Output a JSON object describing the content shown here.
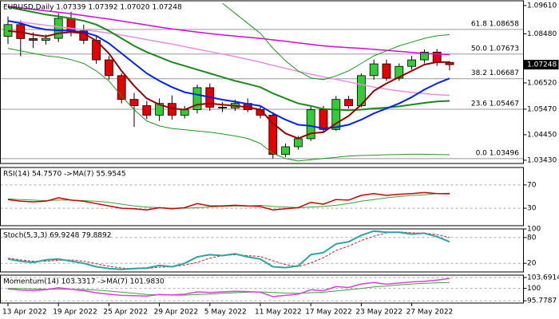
{
  "chart_data": [
    {
      "type": "candlestick",
      "title": "EURUSD,Daily  1.07339 1.07392 1.07020 1.07248",
      "categories": [
        "13 Apr 2022",
        null,
        null,
        null,
        "19 Apr 2022",
        null,
        null,
        null,
        "25 Apr 2022",
        null,
        null,
        null,
        "29 Apr 2022",
        null,
        null,
        null,
        "5 May 2022",
        null,
        null,
        null,
        "11 May 2022",
        null,
        null,
        null,
        "17 May 2022",
        null,
        null,
        null,
        "23 May 2022",
        null,
        null,
        null,
        "27 May 2022",
        null,
        null,
        null
      ],
      "open": [
        1.0838,
        1.0885,
        1.0829,
        1.0822,
        1.083,
        1.091,
        1.086,
        1.0822,
        1.0744,
        1.0681,
        1.0586,
        1.0561,
        1.0523,
        1.057,
        1.0523,
        1.0545,
        1.0633,
        1.0555,
        1.0552,
        1.057,
        1.0545,
        1.0523,
        1.0366,
        1.0397,
        1.0429,
        1.0545,
        1.0466,
        1.0586,
        1.0561,
        1.0681,
        1.0728,
        1.0671,
        1.0718,
        1.0744,
        1.0775,
        1.07339
      ],
      "high": [
        1.0917,
        1.0901,
        1.0854,
        1.0845,
        1.093,
        1.0936,
        1.0885,
        1.0838,
        1.0759,
        1.069,
        1.0612,
        1.058,
        1.059,
        1.0602,
        1.056,
        1.0645,
        1.065,
        1.0575,
        1.0585,
        1.059,
        1.056,
        1.0535,
        1.041,
        1.044,
        1.056,
        1.056,
        1.06,
        1.06,
        1.069,
        1.0745,
        1.0745,
        1.073,
        1.076,
        1.0786,
        1.0787,
        1.07392
      ],
      "low": [
        1.0807,
        1.0759,
        1.0791,
        1.0805,
        1.0815,
        1.0838,
        1.0807,
        1.0728,
        1.0665,
        1.057,
        1.0476,
        1.0507,
        1.05,
        1.0505,
        1.051,
        1.053,
        1.054,
        1.0535,
        1.054,
        1.0535,
        1.051,
        1.03496,
        1.0355,
        1.0385,
        1.042,
        1.0455,
        1.046,
        1.055,
        1.0555,
        1.0665,
        1.066,
        1.066,
        1.0705,
        1.073,
        1.072,
        1.0702
      ],
      "close": [
        1.0885,
        1.0829,
        1.0822,
        1.083,
        1.091,
        1.086,
        1.0822,
        1.0744,
        1.0681,
        1.0586,
        1.0561,
        1.0523,
        1.057,
        1.0523,
        1.0545,
        1.0633,
        1.0555,
        1.0552,
        1.057,
        1.0545,
        1.0523,
        1.0366,
        1.0397,
        1.0429,
        1.0545,
        1.0466,
        1.0586,
        1.0561,
        1.0681,
        1.0728,
        1.0671,
        1.0718,
        1.0744,
        1.0775,
        1.07339,
        1.07248
      ],
      "up_color": "#32cd32",
      "down_color": "#e60000",
      "last_label": "1.07248",
      "ylim": [
        1.033,
        1.098
      ],
      "yticks": [
        {
          "value": 1.0961,
          "label": "1.09610"
        },
        {
          "value": 1.0848,
          "label": "1.08480"
        },
        {
          "value": 1.0652,
          "label": "1.06520"
        },
        {
          "value": 1.0547,
          "label": "1.05470"
        },
        {
          "value": 1.0445,
          "label": "1.04450"
        },
        {
          "value": 1.0343,
          "label": "1.03430"
        }
      ],
      "levels": [
        {
          "value": 1.08658,
          "label": "61.8 1.08658"
        },
        {
          "value": 1.07673,
          "label": "50.0 1.07673"
        },
        {
          "value": 1.06687,
          "label": "38.2 1.06687"
        },
        {
          "value": 1.05467,
          "label": "23.6 1.05467"
        },
        {
          "value": 1.03496,
          "label": "0.0 1.03496"
        }
      ],
      "series": [
        {
          "color": "#e890e0",
          "width": 1.5,
          "values": [
            1.09,
            1.0895,
            1.0889,
            1.0882,
            1.0876,
            1.087,
            1.0864,
            1.0858,
            1.0851,
            1.0843,
            1.0834,
            1.0825,
            1.0816,
            1.0807,
            1.0797,
            1.0787,
            1.0777,
            1.0767,
            1.0757,
            1.0746,
            1.0735,
            1.0722,
            1.071,
            1.0698,
            1.0687,
            1.0676,
            1.0666,
            1.0656,
            1.0645,
            1.0635,
            1.0627,
            1.062,
            1.0614,
            1.0609,
            1.0605,
            1.0602
          ]
        },
        {
          "color": "#dd00dd",
          "width": 1.5,
          "values": [
            1.0958,
            1.0952,
            1.0946,
            1.094,
            1.0934,
            1.0928,
            1.0921,
            1.0914,
            1.0907,
            1.0899,
            1.0891,
            1.0883,
            1.0875,
            1.0868,
            1.0861,
            1.0855,
            1.0849,
            1.0844,
            1.0839,
            1.0834,
            1.083,
            1.0824,
            1.0818,
            1.0812,
            1.0806,
            1.08,
            1.0796,
            1.0793,
            1.079,
            1.0786,
            1.0782,
            1.0778,
            1.0774,
            1.077,
            1.0767,
            1.0765
          ]
        },
        {
          "color": "#1e9a1e",
          "width": 1,
          "values": [
            null,
            null,
            null,
            null,
            null,
            null,
            null,
            null,
            null,
            null,
            null,
            null,
            null,
            null,
            null,
            null,
            null,
            1.097,
            1.093,
            1.089,
            1.085,
            1.079,
            1.074,
            1.07,
            1.0672,
            1.0665,
            1.068,
            1.07,
            1.073,
            1.076,
            1.078,
            1.08,
            1.0815,
            1.083,
            1.084,
            1.0845
          ]
        },
        {
          "color": "#1e9a1e",
          "width": 1,
          "values": [
            1.079,
            1.078,
            1.077,
            1.076,
            1.0755,
            1.0745,
            1.073,
            1.07,
            1.066,
            1.06,
            1.0545,
            1.05,
            1.048,
            1.047,
            1.0465,
            1.046,
            1.0455,
            1.0448,
            1.044,
            1.043,
            1.041,
            1.037,
            1.035,
            1.034,
            1.0345,
            1.035,
            1.0355,
            1.036,
            1.0362,
            1.0363,
            1.0365,
            1.0366,
            1.0367,
            1.0367,
            1.0366,
            1.0365
          ]
        },
        {
          "color": "#1a8a1a",
          "width": 2,
          "values": [
            1.0955,
            1.0945,
            1.0935,
            1.0925,
            1.0918,
            1.091,
            1.09,
            1.0885,
            1.086,
            1.083,
            1.08,
            1.0775,
            1.0755,
            1.0735,
            1.072,
            1.0705,
            1.069,
            1.0675,
            1.066,
            1.0648,
            1.0635,
            1.061,
            1.059,
            1.057,
            1.056,
            1.0548,
            1.0545,
            1.0543,
            1.0545,
            1.055,
            1.0553,
            1.0558,
            1.0565,
            1.0572,
            1.0578,
            1.058
          ]
        },
        {
          "color": "#0022ee",
          "width": 2,
          "values": [
            1.09,
            1.089,
            1.0875,
            1.0865,
            1.0862,
            1.086,
            1.0855,
            1.084,
            1.081,
            1.077,
            1.073,
            1.069,
            1.066,
            1.0635,
            1.0615,
            1.0605,
            1.0595,
            1.0585,
            1.0577,
            1.0568,
            1.056,
            1.053,
            1.0505,
            1.0485,
            1.048,
            1.047,
            1.0475,
            1.0485,
            1.0505,
            1.053,
            1.055,
            1.057,
            1.0595,
            1.0625,
            1.065,
            1.067
          ]
        },
        {
          "color": "#990000",
          "width": 2,
          "values": [
            1.086,
            1.0855,
            1.0845,
            1.0838,
            1.085,
            1.0855,
            1.085,
            1.082,
            1.077,
            1.07,
            1.064,
            1.059,
            1.0565,
            1.055,
            1.0545,
            1.0565,
            1.057,
            1.0565,
            1.056,
            1.0555,
            1.0545,
            1.049,
            1.045,
            1.043,
            1.045,
            1.0455,
            1.049,
            1.052,
            1.0565,
            1.062,
            1.065,
            1.0675,
            1.07,
            1.0725,
            1.0735,
            1.0735
          ]
        }
      ]
    },
    {
      "type": "line",
      "title": "RSI(14) 54.7570  ->MA(7) 55.9545",
      "ylim": [
        0,
        100
      ],
      "yticks": [
        70,
        30
      ],
      "series": [
        {
          "color": "#3aa53a",
          "width": 1,
          "values": [
            46,
            45,
            44,
            43,
            44,
            44,
            43,
            42,
            40,
            37,
            34,
            32,
            31,
            30,
            30,
            31,
            32,
            33,
            34,
            34,
            35,
            33,
            32,
            31,
            32,
            33,
            35,
            38,
            42,
            45,
            48,
            50,
            52,
            53,
            55,
            55.9545
          ]
        },
        {
          "color": "#cc0000",
          "width": 1.5,
          "values": [
            45,
            42,
            41,
            42,
            48,
            44,
            42,
            38,
            34,
            30,
            29,
            27,
            31,
            29,
            31,
            38,
            34,
            34,
            35,
            34,
            33,
            27,
            29,
            31,
            40,
            37,
            45,
            44,
            52,
            55,
            52,
            54,
            55,
            57,
            55,
            54.757
          ]
        }
      ]
    },
    {
      "type": "line",
      "title": "Stoch(5,3,3) 69.9248 79.8892",
      "ylim": [
        0,
        100
      ],
      "yticks": [
        100,
        80,
        20
      ],
      "series": [
        {
          "color": "#d02020",
          "width": 1,
          "dashed": true,
          "values": [
            32,
            28,
            25,
            25,
            27,
            28,
            25,
            19,
            13,
            9,
            7,
            8,
            11,
            12,
            16,
            22,
            32,
            38,
            40,
            38,
            36,
            26,
            17,
            12,
            21,
            33,
            50,
            60,
            73,
            83,
            91,
            93,
            91,
            90,
            87,
            79.8892
          ]
        },
        {
          "color": "#2aa5a5",
          "width": 2,
          "values": [
            30,
            25,
            22,
            28,
            30,
            25,
            20,
            12,
            8,
            6,
            8,
            9,
            15,
            12,
            20,
            35,
            40,
            38,
            42,
            35,
            30,
            12,
            10,
            14,
            40,
            45,
            65,
            70,
            85,
            95,
            92,
            92,
            88,
            90,
            82,
            69.9248
          ]
        }
      ]
    },
    {
      "type": "line",
      "title": "Momentum(14) 103.3317  ->MA(7) 101.9830",
      "ylim": [
        95.0,
        104.5
      ],
      "yticks": [
        103.6914,
        100,
        95.7787
      ],
      "series": [
        {
          "color": "#3aa53a",
          "width": 1,
          "values": [
            100.0,
            99.9,
            99.8,
            99.7,
            99.7,
            99.7,
            99.6,
            99.4,
            99.1,
            98.7,
            98.3,
            97.9,
            97.8,
            97.7,
            97.7,
            97.9,
            98.1,
            98.3,
            98.5,
            98.7,
            98.8,
            98.6,
            98.4,
            98.3,
            98.5,
            98.7,
            99.1,
            99.5,
            100.0,
            100.5,
            100.8,
            101.2,
            101.5,
            101.7,
            101.9,
            101.983
          ]
        },
        {
          "color": "#e040e0",
          "width": 1.5,
          "values": [
            99.8,
            99.4,
            99.3,
            99.5,
            100.2,
            99.7,
            99.2,
            98.5,
            98.0,
            97.6,
            97.5,
            97.4,
            97.9,
            97.8,
            98.0,
            98.8,
            98.6,
            98.8,
            99.0,
            98.9,
            98.7,
            97.2,
            97.6,
            98.0,
            99.5,
            99.2,
            100.6,
            100.3,
            101.5,
            102.0,
            101.4,
            101.8,
            102.2,
            102.4,
            102.8,
            103.3317
          ]
        }
      ]
    }
  ]
}
